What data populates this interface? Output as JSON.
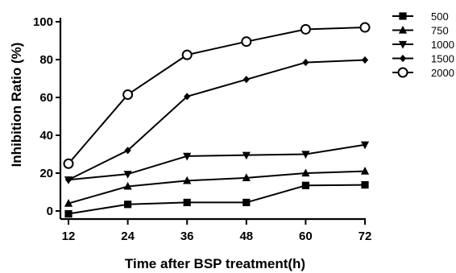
{
  "chart_data": {
    "type": "line",
    "title": "",
    "xlabel": "Time after BSP treatment(h)",
    "ylabel": "Inhibition Ratio (%)",
    "x": [
      12,
      24,
      36,
      48,
      60,
      72
    ],
    "xticks": [
      "12",
      "24",
      "36",
      "48",
      "60",
      "72"
    ],
    "yticks": [
      "0",
      "20",
      "40",
      "60",
      "80",
      "100"
    ],
    "xlim": [
      12,
      72
    ],
    "ylim": [
      -3,
      100
    ],
    "grid": false,
    "legend_position": "top-right",
    "series": [
      {
        "name": "500",
        "marker": "square",
        "values": [
          -1.5,
          3.5,
          4.5,
          4.5,
          13.5,
          13.8
        ]
      },
      {
        "name": "750",
        "marker": "triangle-up",
        "values": [
          4,
          13,
          16,
          17.5,
          20,
          21
        ]
      },
      {
        "name": "1000",
        "marker": "triangle-down",
        "values": [
          16.5,
          19.5,
          29,
          29.5,
          30,
          35
        ]
      },
      {
        "name": "1500",
        "marker": "diamond",
        "values": [
          16.5,
          32,
          60.5,
          69.5,
          78.5,
          79.8
        ]
      },
      {
        "name": "2000",
        "marker": "circle-open",
        "values": [
          25,
          61.5,
          82.5,
          89.5,
          96,
          97
        ]
      }
    ]
  }
}
